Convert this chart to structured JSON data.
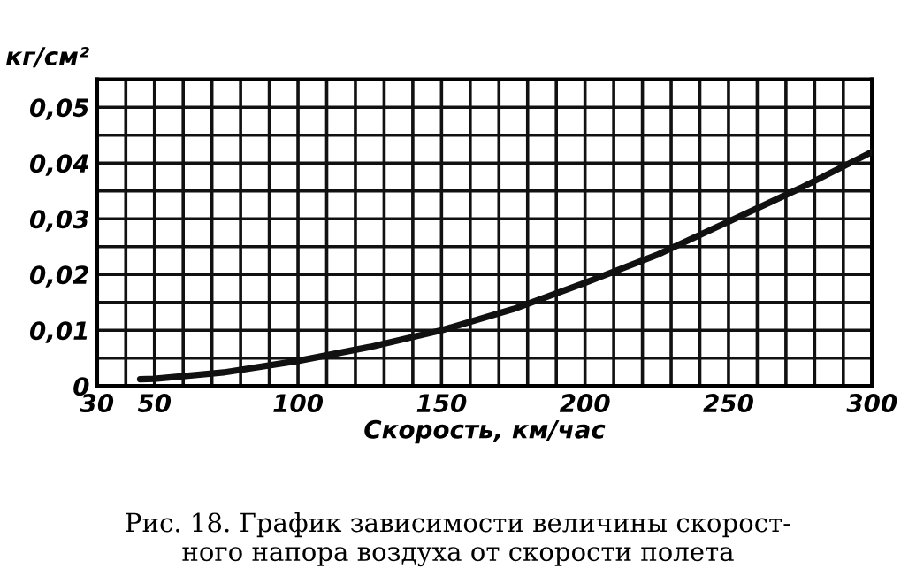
{
  "chart_data": {
    "type": "line",
    "title": "Рис. 18. График зависимости величины скорост-\nного напора воздуха от скорости полета",
    "xlabel": "Скорость, км/час",
    "ylabel": "кг/см²",
    "x": [
      45,
      50,
      75,
      100,
      125,
      150,
      175,
      200,
      225,
      250,
      275,
      300
    ],
    "series": [
      {
        "color": "#111111",
        "values": [
          0.0012,
          0.0013,
          0.0025,
          0.0045,
          0.007,
          0.01,
          0.0138,
          0.0185,
          0.0235,
          0.0295,
          0.0355,
          0.042
        ]
      }
    ],
    "xlim": [
      30,
      300
    ],
    "ylim": [
      0,
      0.055
    ],
    "xticks": [
      30,
      {
        "value": 40,
        "label": null
      },
      50,
      {
        "value": 60,
        "label": null
      },
      {
        "value": 70,
        "label": null
      },
      {
        "value": 80,
        "label": null
      },
      {
        "value": 90,
        "label": null
      },
      100,
      {
        "value": 110,
        "label": null
      },
      {
        "value": 120,
        "label": null
      },
      {
        "value": 130,
        "label": null
      },
      {
        "value": 140,
        "label": null
      },
      150,
      {
        "value": 160,
        "label": null
      },
      {
        "value": 170,
        "label": null
      },
      {
        "value": 180,
        "label": null
      },
      {
        "value": 190,
        "label": null
      },
      200,
      {
        "value": 210,
        "label": null
      },
      {
        "value": 220,
        "label": null
      },
      {
        "value": 230,
        "label": null
      },
      {
        "value": 240,
        "label": null
      },
      250,
      {
        "value": 260,
        "label": null
      },
      {
        "value": 270,
        "label": null
      },
      {
        "value": 280,
        "label": null
      },
      {
        "value": 290,
        "label": null
      },
      300
    ],
    "yticks": [
      0,
      {
        "value": 0.005,
        "label": null
      },
      {
        "value": 0.01,
        "label": "0,01"
      },
      {
        "value": 0.015,
        "label": null
      },
      {
        "value": 0.02,
        "label": "0,02"
      },
      {
        "value": 0.025,
        "label": null
      },
      {
        "value": 0.03,
        "label": "0,03"
      },
      {
        "value": 0.035,
        "label": null
      },
      {
        "value": 0.04,
        "label": "0,04"
      },
      {
        "value": 0.045,
        "label": null
      },
      {
        "value": 0.05,
        "label": "0,05"
      }
    ],
    "grid": true,
    "marker": "none",
    "line_style": "solid"
  }
}
